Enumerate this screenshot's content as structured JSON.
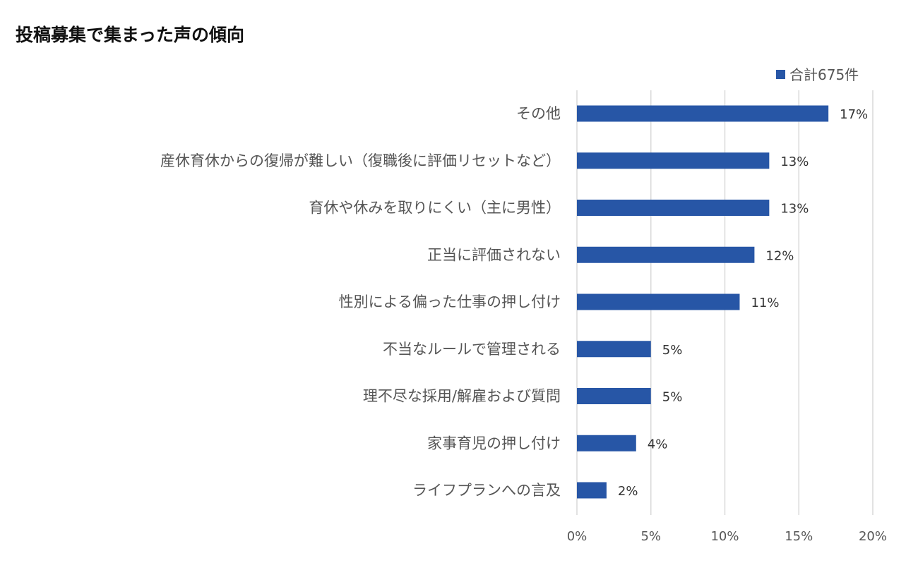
{
  "title": "投稿募集で集まった声の傾向",
  "colors": {
    "bar": "#2756a6",
    "grid": "#d9d9d9",
    "label": "#555555",
    "value_label": "#333333"
  },
  "chart_data": {
    "type": "bar",
    "orientation": "horizontal",
    "title": "投稿募集で集まった声の傾向",
    "categories": [
      "その他",
      "産休育休からの復帰が難しい（復職後に評価リセットなど）",
      "育休や休みを取りにくい（主に男性）",
      "正当に評価されない",
      "性別による偏った仕事の押し付け",
      "不当なルールで管理される",
      "理不尽な採用/解雇および質問",
      "家事育児の押し付け",
      "ライフプランへの言及"
    ],
    "series": [
      {
        "name": "合計675件",
        "values": [
          17,
          13,
          13,
          12,
          11,
          5,
          5,
          4,
          2
        ],
        "labels": [
          "17%",
          "13%",
          "13%",
          "12%",
          "11%",
          "5%",
          "5%",
          "4%",
          "2%"
        ]
      }
    ],
    "xlim": [
      0,
      20
    ],
    "xticks": [
      0,
      5,
      10,
      15,
      20
    ],
    "xtick_labels": [
      "0%",
      "5%",
      "10%",
      "15%",
      "20%"
    ],
    "xlabel": "",
    "ylabel": "",
    "grid": true,
    "legend_position": "top-right"
  }
}
